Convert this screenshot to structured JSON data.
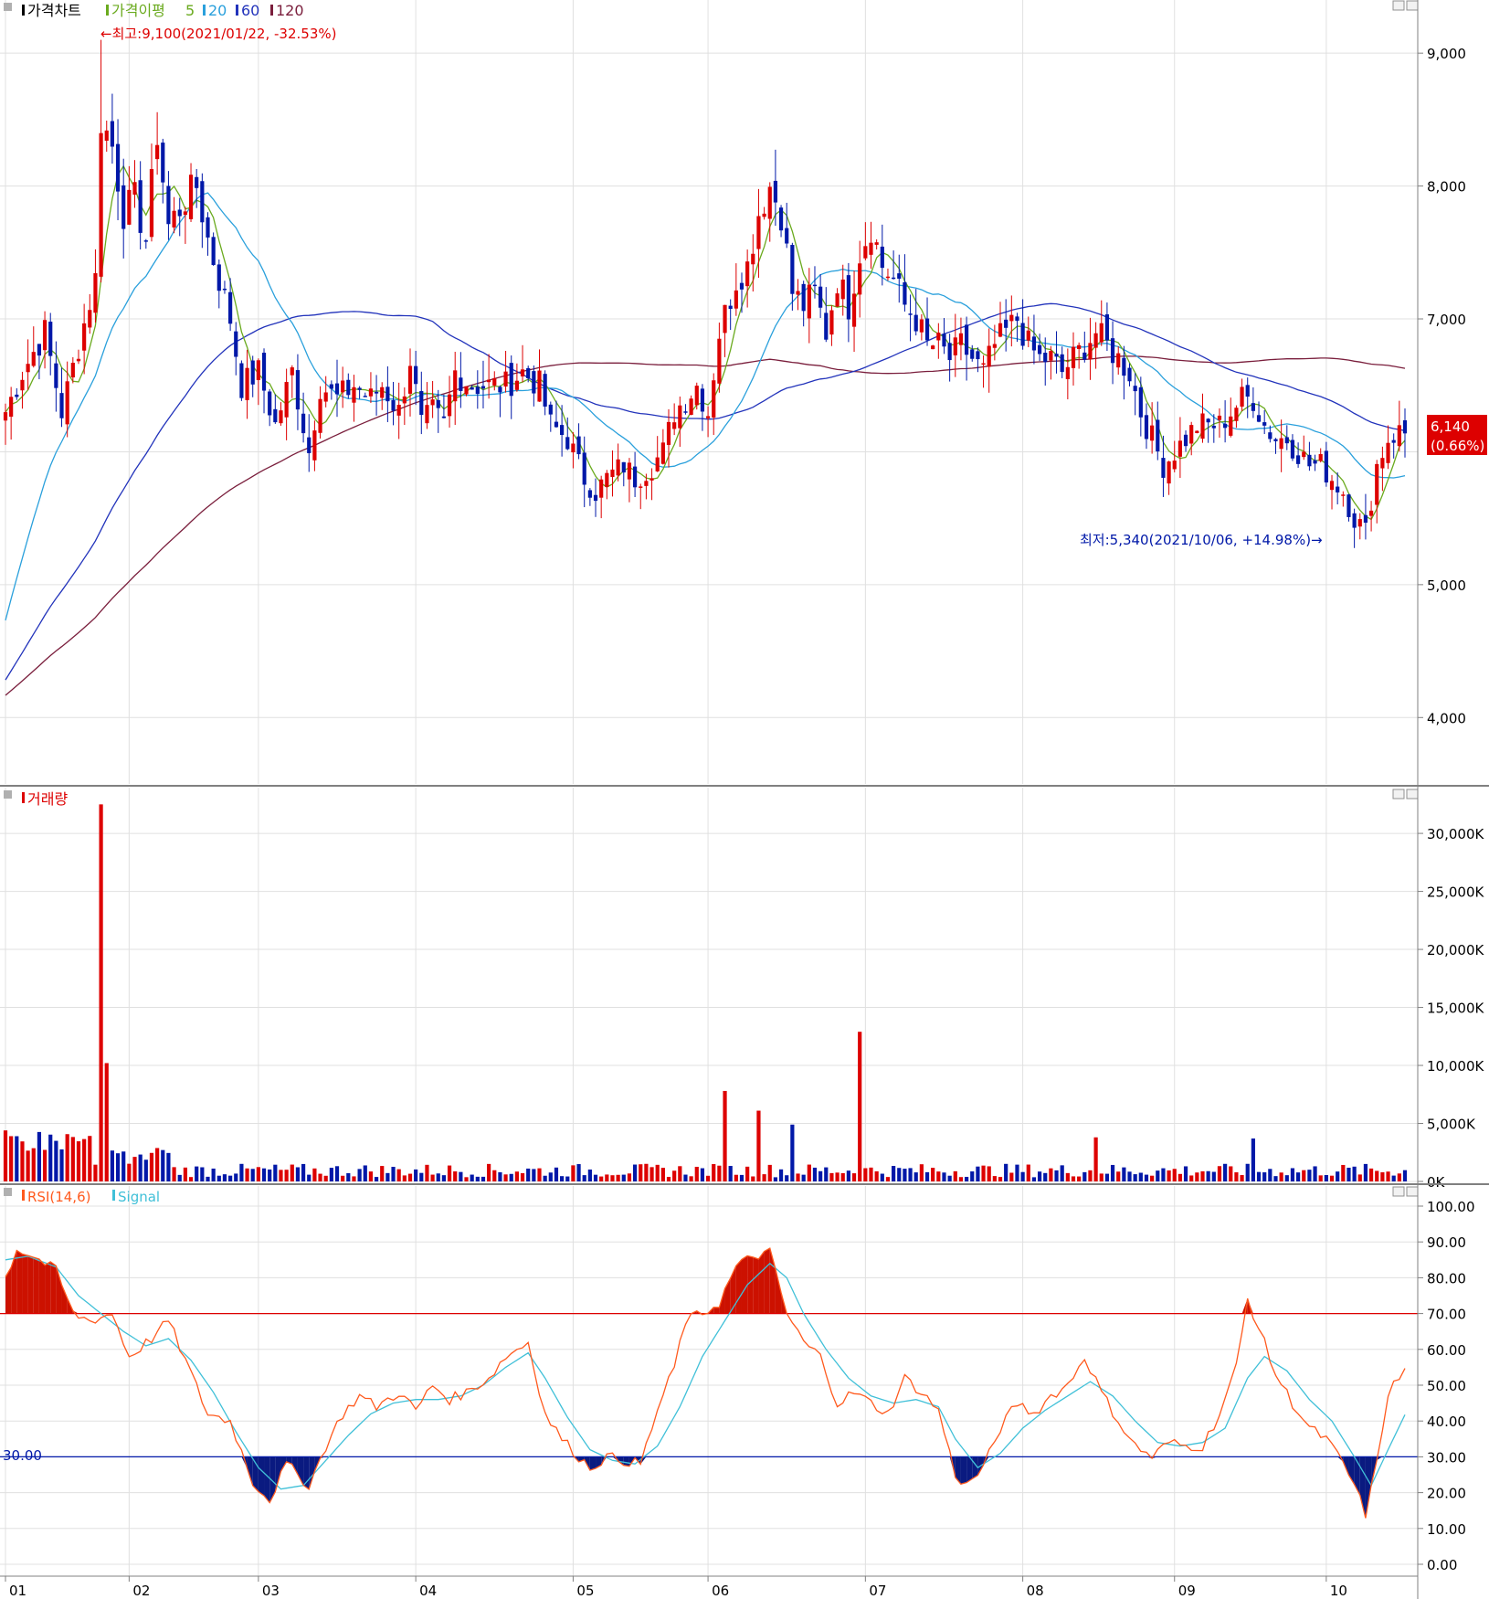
{
  "colors": {
    "up": "#dd0000",
    "down": "#0018a8",
    "ma5": "#6aaa1e",
    "ma20": "#2aa0dc",
    "ma60": "#2233bb",
    "ma120": "#7a1e3c",
    "rsi": "#ff5a1e",
    "signal": "#40c0d8",
    "grid": "#e0e0e0",
    "separator": "#808080"
  },
  "chart_data": [
    {
      "type": "candlestick",
      "panel": "price",
      "legend": {
        "title": "가격차트",
        "ma_title": "가격이평",
        "periods": [
          "5",
          "20",
          "60",
          "120"
        ]
      },
      "y_ticks": [
        "9,000",
        "8,000",
        "7,000",
        "5,000",
        "4,000"
      ],
      "ylim": [
        3500,
        9400
      ],
      "current": {
        "price": "6,140",
        "change": "(0.66%)"
      },
      "high_note": "←최고:9,100(2021/01/22, -32.53%)",
      "low_note": "최저:5,340(2021/10/06, +14.98%)→",
      "anchors": [
        [
          0,
          6300
        ],
        [
          3,
          6600
        ],
        [
          7,
          6900
        ],
        [
          10,
          6300
        ],
        [
          13,
          6800
        ],
        [
          16,
          7300
        ],
        [
          17,
          8500
        ],
        [
          19,
          8300
        ],
        [
          21,
          7800
        ],
        [
          23,
          7900
        ],
        [
          25,
          7600
        ],
        [
          27,
          8400
        ],
        [
          29,
          7700
        ],
        [
          32,
          7900
        ],
        [
          34,
          8000
        ],
        [
          36,
          7600
        ],
        [
          38,
          7300
        ],
        [
          40,
          7000
        ],
        [
          42,
          6500
        ],
        [
          45,
          6600
        ],
        [
          48,
          6200
        ],
        [
          51,
          6600
        ],
        [
          53,
          6200
        ],
        [
          54,
          6000
        ],
        [
          56,
          6500
        ],
        [
          59,
          6400
        ],
        [
          62,
          6500
        ],
        [
          65,
          6400
        ],
        [
          67,
          6500
        ],
        [
          70,
          6300
        ],
        [
          72,
          6700
        ],
        [
          74,
          6200
        ],
        [
          76,
          6300
        ],
        [
          78,
          6200
        ],
        [
          80,
          6600
        ],
        [
          83,
          6500
        ],
        [
          86,
          6500
        ],
        [
          89,
          6500
        ],
        [
          92,
          6600
        ],
        [
          95,
          6500
        ],
        [
          97,
          6200
        ],
        [
          100,
          6100
        ],
        [
          103,
          5800
        ],
        [
          105,
          5700
        ],
        [
          107,
          5800
        ],
        [
          110,
          5900
        ],
        [
          112,
          5800
        ],
        [
          115,
          5900
        ],
        [
          117,
          6000
        ],
        [
          119,
          6300
        ],
        [
          121,
          6400
        ],
        [
          123,
          6500
        ],
        [
          125,
          6300
        ],
        [
          127,
          6900
        ],
        [
          130,
          7300
        ],
        [
          132,
          7400
        ],
        [
          134,
          7800
        ],
        [
          136,
          8000
        ],
        [
          138,
          7800
        ],
        [
          140,
          7200
        ],
        [
          142,
          7100
        ],
        [
          144,
          7200
        ],
        [
          146,
          6900
        ],
        [
          148,
          7300
        ],
        [
          150,
          7100
        ],
        [
          152,
          7500
        ],
        [
          154,
          7700
        ],
        [
          156,
          7400
        ],
        [
          158,
          7300
        ],
        [
          160,
          7100
        ],
        [
          162,
          7000
        ],
        [
          164,
          6800
        ],
        [
          166,
          6800
        ],
        [
          168,
          6700
        ],
        [
          170,
          6800
        ],
        [
          172,
          6700
        ],
        [
          174,
          6600
        ],
        [
          176,
          6800
        ],
        [
          178,
          6900
        ],
        [
          180,
          7000
        ],
        [
          182,
          6800
        ],
        [
          184,
          6700
        ],
        [
          186,
          6700
        ],
        [
          188,
          6600
        ],
        [
          190,
          6700
        ],
        [
          192,
          6800
        ],
        [
          194,
          6900
        ],
        [
          196,
          6800
        ],
        [
          198,
          6700
        ],
        [
          200,
          6600
        ],
        [
          202,
          6300
        ],
        [
          204,
          6100
        ],
        [
          206,
          5900
        ],
        [
          208,
          6000
        ],
        [
          210,
          6100
        ],
        [
          212,
          6200
        ],
        [
          214,
          6200
        ],
        [
          216,
          6200
        ],
        [
          218,
          6300
        ],
        [
          220,
          6400
        ],
        [
          222,
          6400
        ],
        [
          224,
          6200
        ],
        [
          226,
          6100
        ],
        [
          228,
          6100
        ],
        [
          230,
          6000
        ],
        [
          232,
          5900
        ],
        [
          234,
          5900
        ],
        [
          236,
          5800
        ],
        [
          238,
          5700
        ],
        [
          240,
          5500
        ],
        [
          242,
          5400
        ],
        [
          244,
          5900
        ],
        [
          246,
          6100
        ],
        [
          248,
          6150
        ],
        [
          249,
          6140
        ]
      ]
    },
    {
      "type": "bar",
      "panel": "volume",
      "legend": {
        "title": "거래량"
      },
      "y_ticks": [
        "30,000K",
        "25,000K",
        "20,000K",
        "15,000K",
        "10,000K",
        "5,000K",
        "0K"
      ],
      "ylim": [
        0,
        33000
      ],
      "spikes": [
        {
          "day": 17,
          "value": 32500
        },
        {
          "day": 18,
          "value": 10200
        },
        {
          "day": 128,
          "value": 7800
        },
        {
          "day": 134,
          "value": 6100
        },
        {
          "day": 140,
          "value": 4900
        },
        {
          "day": 152,
          "value": 12900
        },
        {
          "day": 194,
          "value": 3800
        },
        {
          "day": 222,
          "value": 3700
        }
      ],
      "base": 900
    },
    {
      "type": "line",
      "panel": "rsi",
      "legend": {
        "title": "RSI(14,6)",
        "signal": "Signal"
      },
      "y_ticks": [
        "100.00",
        "90.00",
        "80.00",
        "70.00",
        "60.00",
        "50.00",
        "40.00",
        "30.00",
        "20.00",
        "10.00",
        "0.00"
      ],
      "ylim": [
        0,
        100
      ],
      "reference_lines": [
        70,
        30
      ],
      "reference_label": "30.00",
      "rsi_anchors": [
        [
          0,
          80
        ],
        [
          2,
          88
        ],
        [
          5,
          86
        ],
        [
          9,
          82
        ],
        [
          12,
          70
        ],
        [
          15,
          68
        ],
        [
          19,
          70
        ],
        [
          22,
          58
        ],
        [
          26,
          63
        ],
        [
          29,
          68
        ],
        [
          32,
          57
        ],
        [
          36,
          42
        ],
        [
          40,
          40
        ],
        [
          44,
          23
        ],
        [
          47,
          18
        ],
        [
          50,
          28
        ],
        [
          54,
          22
        ],
        [
          57,
          33
        ],
        [
          60,
          42
        ],
        [
          63,
          47
        ],
        [
          66,
          44
        ],
        [
          70,
          48
        ],
        [
          73,
          43
        ],
        [
          76,
          50
        ],
        [
          79,
          46
        ],
        [
          82,
          48
        ],
        [
          86,
          52
        ],
        [
          89,
          58
        ],
        [
          93,
          62
        ],
        [
          96,
          42
        ],
        [
          99,
          35
        ],
        [
          102,
          30
        ],
        [
          104,
          27
        ],
        [
          107,
          30
        ],
        [
          110,
          29
        ],
        [
          113,
          28
        ],
        [
          116,
          43
        ],
        [
          119,
          55
        ],
        [
          121,
          68
        ],
        [
          124,
          70
        ],
        [
          127,
          73
        ],
        [
          130,
          83
        ],
        [
          133,
          86
        ],
        [
          136,
          87
        ],
        [
          139,
          70
        ],
        [
          142,
          62
        ],
        [
          145,
          58
        ],
        [
          148,
          45
        ],
        [
          151,
          48
        ],
        [
          154,
          45
        ],
        [
          157,
          42
        ],
        [
          160,
          52
        ],
        [
          163,
          48
        ],
        [
          166,
          43
        ],
        [
          169,
          25
        ],
        [
          171,
          22
        ],
        [
          174,
          27
        ],
        [
          177,
          38
        ],
        [
          180,
          45
        ],
        [
          183,
          42
        ],
        [
          186,
          47
        ],
        [
          189,
          50
        ],
        [
          192,
          58
        ],
        [
          195,
          48
        ],
        [
          198,
          40
        ],
        [
          201,
          33
        ],
        [
          204,
          30
        ],
        [
          207,
          34
        ],
        [
          210,
          33
        ],
        [
          213,
          33
        ],
        [
          216,
          42
        ],
        [
          219,
          55
        ],
        [
          221,
          74
        ],
        [
          223,
          66
        ],
        [
          226,
          53
        ],
        [
          229,
          45
        ],
        [
          232,
          38
        ],
        [
          235,
          35
        ],
        [
          238,
          28
        ],
        [
          240,
          22
        ],
        [
          242,
          14
        ],
        [
          244,
          28
        ],
        [
          246,
          48
        ],
        [
          248,
          52
        ],
        [
          250,
          56
        ]
      ],
      "signal_anchors": [
        [
          0,
          85
        ],
        [
          4,
          86
        ],
        [
          9,
          83
        ],
        [
          13,
          75
        ],
        [
          17,
          70
        ],
        [
          21,
          65
        ],
        [
          25,
          61
        ],
        [
          29,
          63
        ],
        [
          33,
          57
        ],
        [
          37,
          48
        ],
        [
          41,
          37
        ],
        [
          45,
          27
        ],
        [
          49,
          21
        ],
        [
          53,
          22
        ],
        [
          57,
          29
        ],
        [
          61,
          36
        ],
        [
          65,
          42
        ],
        [
          69,
          45
        ],
        [
          73,
          46
        ],
        [
          77,
          46
        ],
        [
          81,
          47
        ],
        [
          85,
          50
        ],
        [
          89,
          55
        ],
        [
          93,
          59
        ],
        [
          96,
          52
        ],
        [
          100,
          41
        ],
        [
          104,
          32
        ],
        [
          108,
          29
        ],
        [
          112,
          28
        ],
        [
          116,
          33
        ],
        [
          120,
          44
        ],
        [
          124,
          58
        ],
        [
          128,
          68
        ],
        [
          132,
          78
        ],
        [
          136,
          84
        ],
        [
          139,
          80
        ],
        [
          142,
          70
        ],
        [
          146,
          60
        ],
        [
          150,
          52
        ],
        [
          154,
          47
        ],
        [
          158,
          45
        ],
        [
          162,
          46
        ],
        [
          166,
          44
        ],
        [
          169,
          35
        ],
        [
          173,
          27
        ],
        [
          177,
          31
        ],
        [
          181,
          38
        ],
        [
          185,
          43
        ],
        [
          189,
          47
        ],
        [
          193,
          51
        ],
        [
          197,
          47
        ],
        [
          201,
          40
        ],
        [
          205,
          34
        ],
        [
          209,
          33
        ],
        [
          213,
          34
        ],
        [
          217,
          38
        ],
        [
          221,
          52
        ],
        [
          224,
          58
        ],
        [
          228,
          54
        ],
        [
          232,
          46
        ],
        [
          236,
          40
        ],
        [
          240,
          30
        ],
        [
          243,
          22
        ],
        [
          246,
          32
        ],
        [
          250,
          45
        ]
      ]
    }
  ],
  "x_axis": {
    "labels": [
      "01",
      "02",
      "03",
      "04",
      "05",
      "06",
      "07",
      "08",
      "09",
      "10"
    ],
    "label_days": [
      0,
      22,
      45,
      73,
      101,
      125,
      153,
      181,
      208,
      235
    ]
  },
  "days": 250
}
